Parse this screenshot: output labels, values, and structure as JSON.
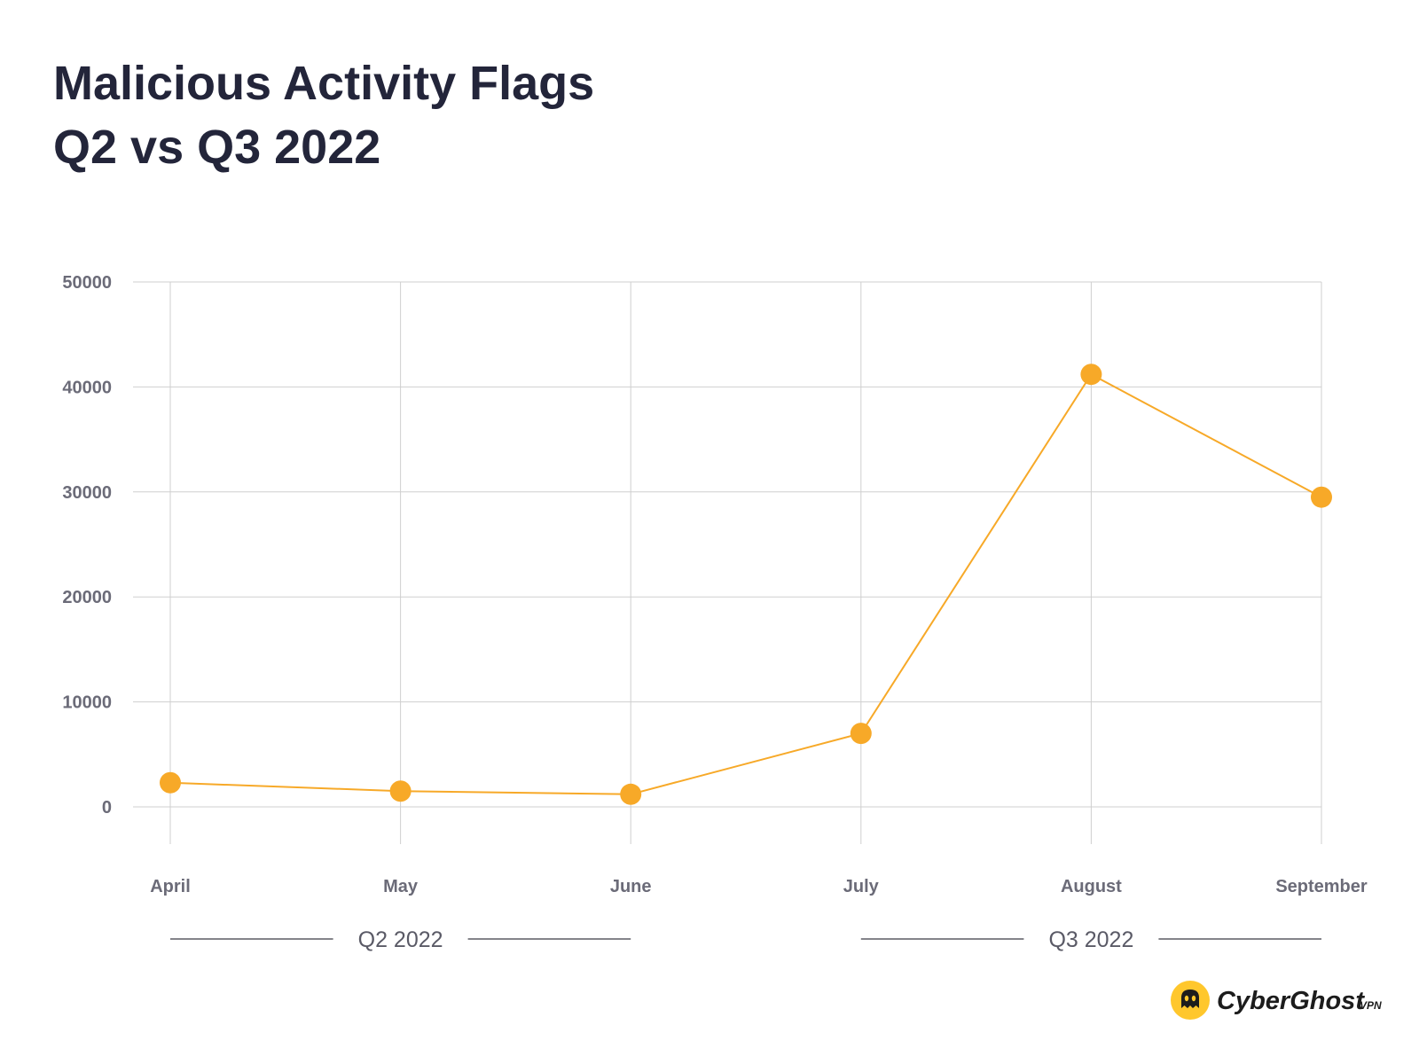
{
  "title": {
    "line1": "Malicious Activity Flags",
    "line2": "Q2 vs Q3 2022"
  },
  "chart_data": {
    "type": "line",
    "title": "Malicious Activity Flags Q2 vs Q3 2022",
    "categories": [
      "April",
      "May",
      "June",
      "July",
      "August",
      "September"
    ],
    "series": [
      {
        "name": "Malicious Activity Flags",
        "values": [
          2300,
          1500,
          1200,
          7000,
          41200,
          29500
        ]
      }
    ],
    "ylim": [
      0,
      50000
    ],
    "yticks": [
      0,
      10000,
      20000,
      30000,
      40000,
      50000
    ],
    "ytick_labels": [
      "0",
      "10000",
      "20000",
      "30000",
      "40000",
      "50000"
    ],
    "xlabel": "",
    "ylabel": "",
    "grid": true,
    "groups": [
      {
        "label": "Q2 2022",
        "from": 0,
        "to": 2
      },
      {
        "label": "Q3 2022",
        "from": 3,
        "to": 5
      }
    ],
    "colors": {
      "line": "#f7a928",
      "grid": "#cfcfcf",
      "tick_text": "#6b6b78",
      "group_text": "#5a5a66",
      "group_rule": "#3a3a44"
    }
  },
  "logo": {
    "text": "CyberGhost",
    "suffix": "VPN",
    "icon": "ghost-icon",
    "icon_color": "#ffc72c"
  }
}
